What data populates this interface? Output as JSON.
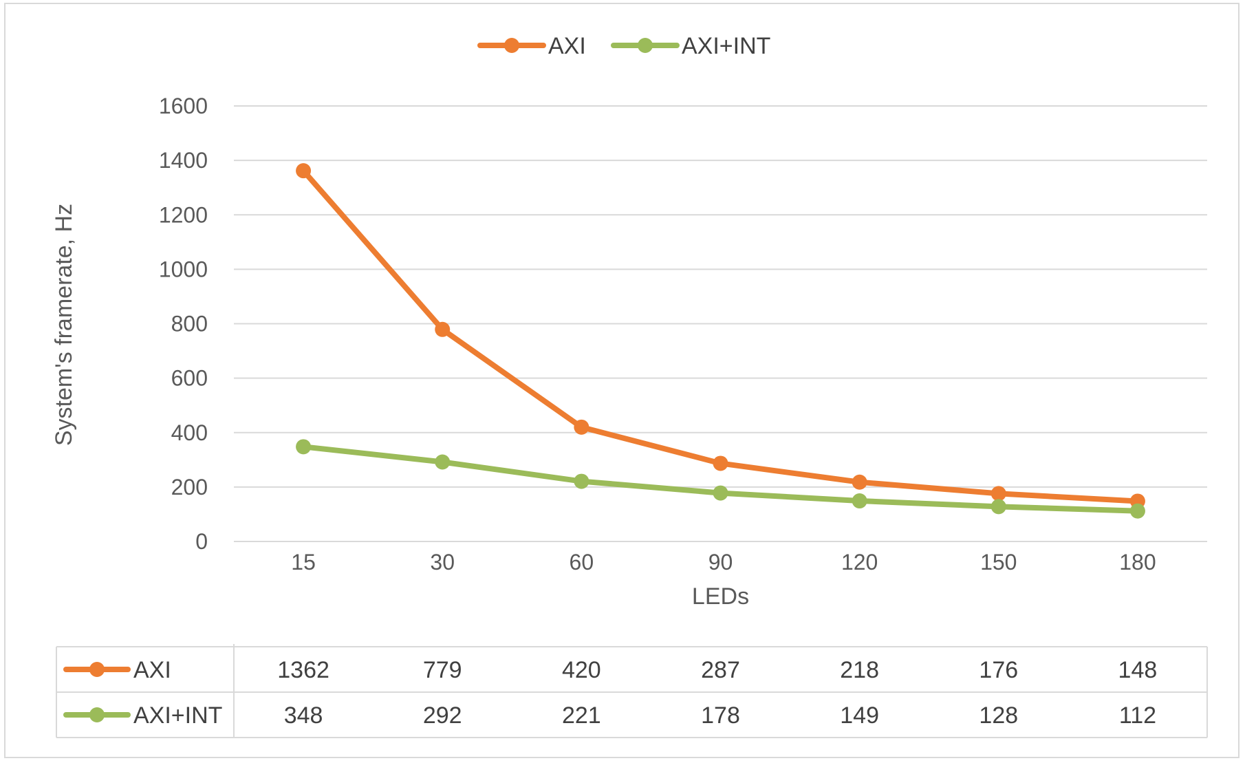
{
  "chart_data": {
    "type": "line",
    "categories": [
      "15",
      "30",
      "60",
      "90",
      "120",
      "150",
      "180"
    ],
    "series": [
      {
        "name": "AXI",
        "color": "#ed7d31",
        "values": [
          1362,
          779,
          420,
          287,
          218,
          176,
          148
        ]
      },
      {
        "name": "AXI+INT",
        "color": "#9bbb59",
        "values": [
          348,
          292,
          221,
          178,
          149,
          128,
          112
        ]
      }
    ],
    "xlabel": "LEDs",
    "ylabel": "System's framerate, Hz",
    "ylim": [
      0,
      1600
    ],
    "yticks": [
      0,
      200,
      400,
      600,
      800,
      1000,
      1200,
      1400,
      1600
    ],
    "grid": true,
    "legend_position": "top-center",
    "data_table": true
  }
}
